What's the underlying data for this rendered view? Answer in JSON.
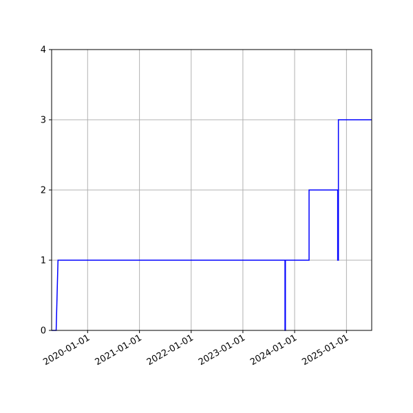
{
  "chart_data": {
    "type": "line",
    "title": "",
    "xlabel": "",
    "ylabel": "",
    "xlim": [
      "2019-04-22",
      "2025-06-28"
    ],
    "ylim": [
      0,
      4
    ],
    "grid": true,
    "legend": "none",
    "x_ticks": [
      "2020-01-01",
      "2021-01-01",
      "2022-01-01",
      "2023-01-01",
      "2024-01-01",
      "2025-01-01"
    ],
    "y_ticks": [
      0,
      1,
      2,
      3,
      4
    ],
    "colors": {
      "line": "#0000ff",
      "grid": "#b0b0b0",
      "axes": "#000000"
    },
    "series": [
      {
        "name": "",
        "x": [
          "2019-04-22",
          "2019-05-24",
          "2019-06-06",
          "2023-10-25",
          "2023-10-25",
          "2023-10-28",
          "2023-10-28",
          "2024-04-12",
          "2024-04-12",
          "2024-10-31",
          "2024-10-31",
          "2024-11-05",
          "2024-11-05",
          "2025-06-28"
        ],
        "y": [
          0,
          0,
          1,
          1,
          0,
          0,
          1,
          1,
          2,
          2,
          1,
          1,
          3,
          3
        ]
      }
    ]
  }
}
